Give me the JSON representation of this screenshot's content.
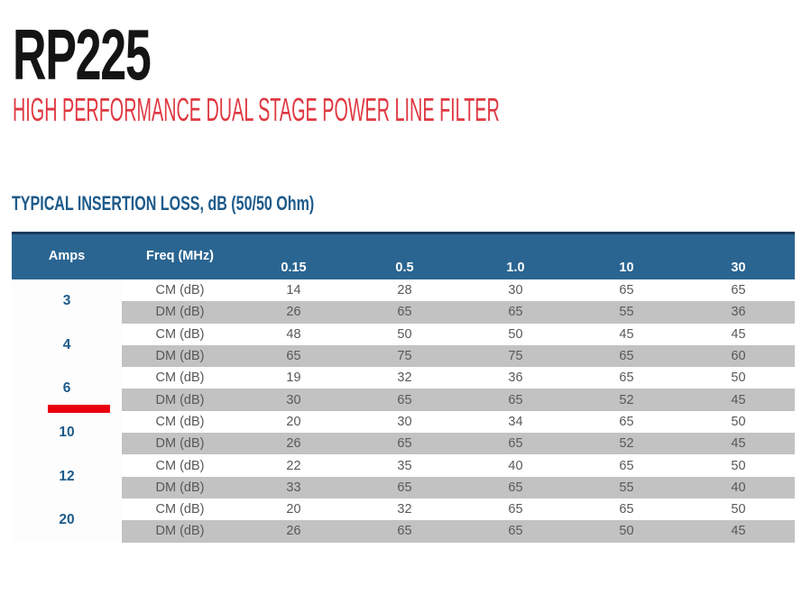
{
  "page": {
    "title": "RP225",
    "subtitle": "HIGH PERFORMANCE DUAL STAGE POWER LINE FILTER",
    "section_heading": "TYPICAL INSERTION LOSS, dB (50/50 Ohm)"
  },
  "colors": {
    "header_bg": "#2a6591",
    "header_top_line": "#17395a",
    "shaded_row_bg": "#c2c2c2",
    "accent_blue": "#1d5a8a",
    "subtitle_red": "#df3942",
    "highlight_red": "#e8000e",
    "body_text": "#58585b"
  },
  "table": {
    "col_headers": {
      "amps": "Amps",
      "freq": "Freq (MHz)",
      "frequencies": [
        "0.15",
        "0.5",
        "1.0",
        "10",
        "30"
      ]
    },
    "groups": [
      {
        "amps": "3",
        "rows": [
          {
            "label": "CM (dB)",
            "values": [
              "14",
              "28",
              "30",
              "65",
              "65"
            ]
          },
          {
            "label": "DM (dB)",
            "values": [
              "26",
              "65",
              "65",
              "55",
              "36"
            ]
          }
        ]
      },
      {
        "amps": "4",
        "rows": [
          {
            "label": "CM (dB)",
            "values": [
              "48",
              "50",
              "50",
              "45",
              "45"
            ]
          },
          {
            "label": "DM (dB)",
            "values": [
              "65",
              "75",
              "75",
              "65",
              "60"
            ]
          }
        ]
      },
      {
        "amps": "6",
        "rows": [
          {
            "label": "CM (dB)",
            "values": [
              "19",
              "32",
              "36",
              "65",
              "50"
            ]
          },
          {
            "label": "DM (dB)",
            "values": [
              "30",
              "65",
              "65",
              "52",
              "45"
            ]
          }
        ]
      },
      {
        "amps": "10",
        "rows": [
          {
            "label": "CM (dB)",
            "values": [
              "20",
              "30",
              "34",
              "65",
              "50"
            ]
          },
          {
            "label": "DM (dB)",
            "values": [
              "26",
              "65",
              "65",
              "52",
              "45"
            ]
          }
        ]
      },
      {
        "amps": "12",
        "rows": [
          {
            "label": "CM (dB)",
            "values": [
              "22",
              "35",
              "40",
              "65",
              "50"
            ]
          },
          {
            "label": "DM (dB)",
            "values": [
              "33",
              "65",
              "65",
              "55",
              "40"
            ]
          }
        ]
      },
      {
        "amps": "20",
        "rows": [
          {
            "label": "CM (dB)",
            "values": [
              "20",
              "32",
              "65",
              "65",
              "50"
            ]
          },
          {
            "label": "DM (dB)",
            "values": [
              "26",
              "65",
              "65",
              "50",
              "45"
            ]
          }
        ]
      }
    ]
  }
}
